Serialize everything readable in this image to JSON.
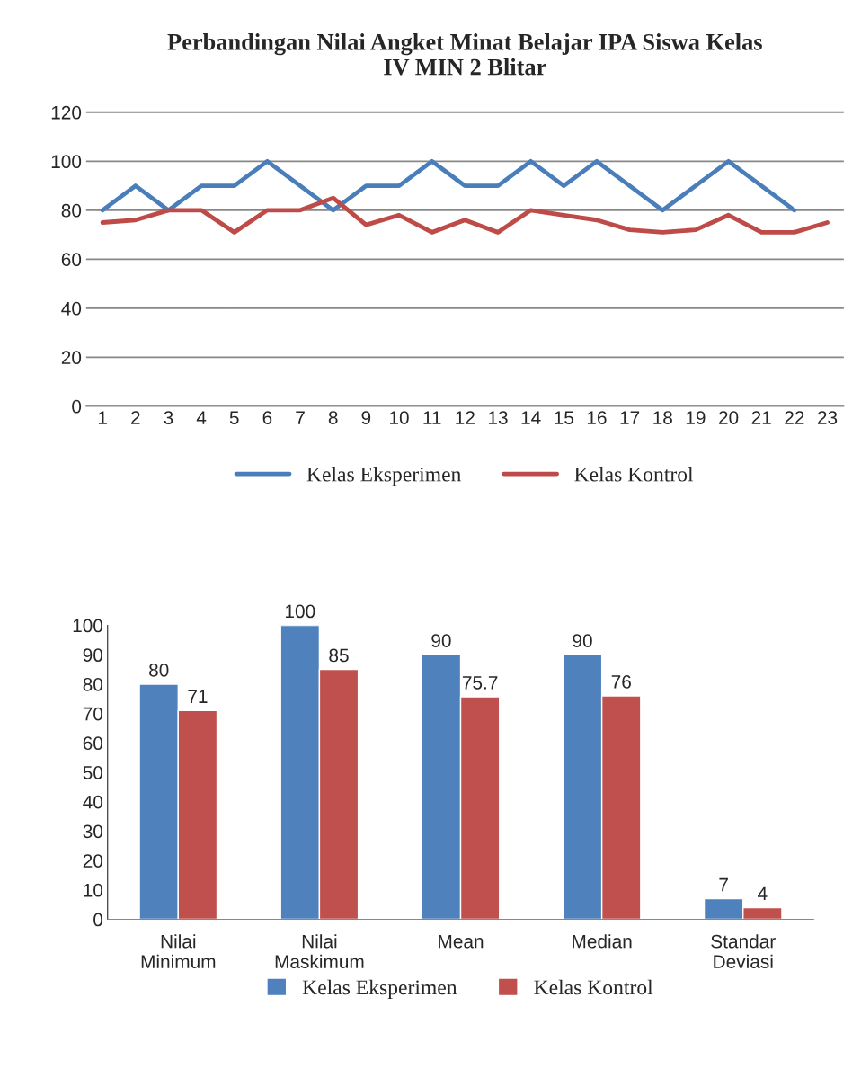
{
  "chart_data": [
    {
      "type": "line",
      "title": "Perbandingan Nilai Angket Minat Belajar IPA Siswa Kelas\nIV MIN 2 Blitar",
      "categories": [
        "1",
        "2",
        "3",
        "4",
        "5",
        "6",
        "7",
        "8",
        "9",
        "10",
        "11",
        "12",
        "13",
        "14",
        "15",
        "16",
        "17",
        "18",
        "19",
        "20",
        "21",
        "22",
        "23"
      ],
      "series": [
        {
          "name": "Kelas Eksperimen",
          "color": "#4a7ebb",
          "values": [
            80,
            90,
            80,
            90,
            90,
            100,
            90,
            80,
            90,
            90,
            100,
            90,
            90,
            100,
            90,
            100,
            90,
            80,
            90,
            100,
            90,
            80,
            null
          ]
        },
        {
          "name": "Kelas Kontrol",
          "color": "#be4b48",
          "values": [
            75,
            76,
            80,
            80,
            71,
            80,
            80,
            85,
            74,
            78,
            71,
            76,
            71,
            80,
            78,
            76,
            72,
            71,
            72,
            78,
            71,
            71,
            75
          ]
        }
      ],
      "ylim": [
        0,
        120
      ],
      "yticks": [
        0,
        20,
        40,
        60,
        80,
        100,
        120
      ],
      "grid": "y",
      "legend": "bottom",
      "marker": "none",
      "line_style": "solid"
    },
    {
      "type": "bar",
      "categories": [
        "Nilai\nMinimum",
        "Nilai\nMaskimum",
        "Mean",
        "Median",
        "Standar\nDeviasi"
      ],
      "series": [
        {
          "name": "Kelas Eksperimen",
          "color": "#4f81bd",
          "values": [
            80,
            100,
            90,
            90,
            7
          ]
        },
        {
          "name": "Kelas Kontrol",
          "color": "#c0504d",
          "values": [
            71,
            85,
            75.7,
            76,
            4
          ]
        }
      ],
      "ylim": [
        0,
        100
      ],
      "yticks": [
        0,
        10,
        20,
        30,
        40,
        50,
        60,
        70,
        80,
        90,
        100
      ],
      "grid": false,
      "legend": "bottom",
      "data_labels": true
    }
  ]
}
